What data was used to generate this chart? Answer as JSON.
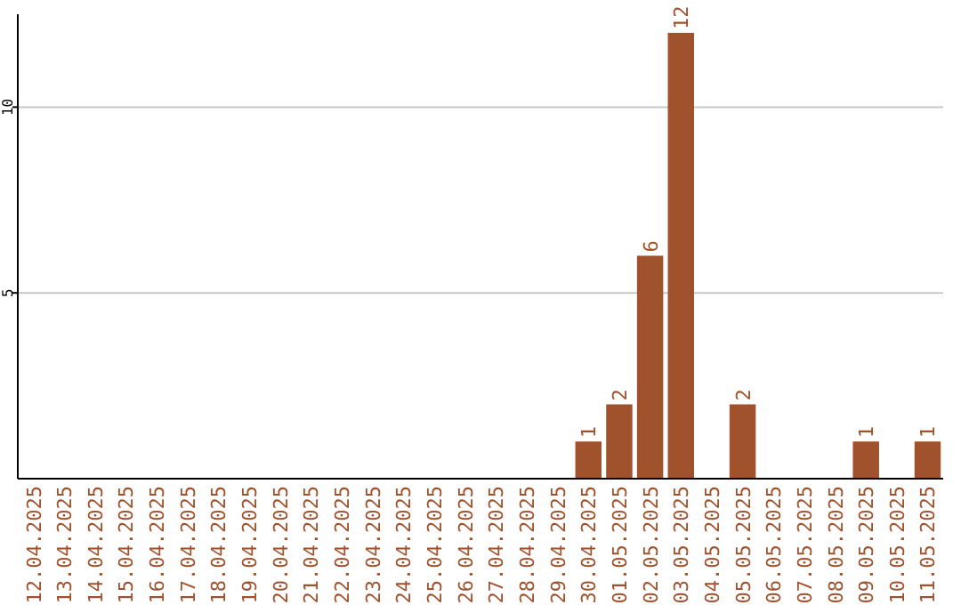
{
  "chart_data": {
    "type": "bar",
    "categories": [
      "12.04.2025",
      "13.04.2025",
      "14.04.2025",
      "15.04.2025",
      "16.04.2025",
      "17.04.2025",
      "18.04.2025",
      "19.04.2025",
      "20.04.2025",
      "21.04.2025",
      "22.04.2025",
      "23.04.2025",
      "24.04.2025",
      "25.04.2025",
      "26.04.2025",
      "27.04.2025",
      "28.04.2025",
      "29.04.2025",
      "30.04.2025",
      "01.05.2025",
      "02.05.2025",
      "03.05.2025",
      "04.05.2025",
      "05.05.2025",
      "06.05.2025",
      "07.05.2025",
      "08.05.2025",
      "09.05.2025",
      "10.05.2025",
      "11.05.2025"
    ],
    "values": [
      0,
      0,
      0,
      0,
      0,
      0,
      0,
      0,
      0,
      0,
      0,
      0,
      0,
      0,
      0,
      0,
      0,
      0,
      1,
      2,
      6,
      12,
      0,
      2,
      0,
      0,
      0,
      1,
      0,
      1
    ],
    "value_labels": [
      null,
      null,
      null,
      null,
      null,
      null,
      null,
      null,
      null,
      null,
      null,
      null,
      null,
      null,
      null,
      null,
      null,
      null,
      "1",
      "2",
      "6",
      "12",
      null,
      "2",
      null,
      null,
      null,
      "1",
      null,
      "1"
    ],
    "color": "#a0522d",
    "ylim": [
      0,
      12.5
    ],
    "yticks": [
      5,
      10
    ],
    "grid": "y"
  }
}
